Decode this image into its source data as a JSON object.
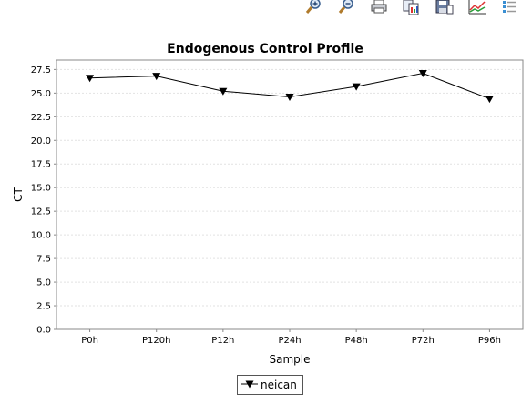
{
  "toolbar": {
    "icons": [
      "zoom-in-icon",
      "zoom-out-icon",
      "print-icon",
      "copy-icon",
      "save-icon",
      "chart-properties-icon",
      "list-icon"
    ]
  },
  "chart_data": {
    "type": "line",
    "title": "Endogenous Control Profile",
    "xlabel": "Sample",
    "ylabel": "CT",
    "categories": [
      "P0h",
      "P120h",
      "P12h",
      "P24h",
      "P48h",
      "P72h",
      "P96h"
    ],
    "series": [
      {
        "name": "neican",
        "values": [
          26.6,
          26.8,
          25.2,
          24.6,
          25.7,
          27.1,
          24.4
        ],
        "marker": "down-triangle",
        "color": "#000000"
      }
    ],
    "ylim": [
      0,
      28.5
    ],
    "yticks": [
      "0.0",
      "2.5",
      "5.0",
      "7.5",
      "10.0",
      "12.5",
      "15.0",
      "17.5",
      "20.0",
      "22.5",
      "25.0",
      "27.5"
    ],
    "grid": true,
    "legend_position": "bottom"
  }
}
